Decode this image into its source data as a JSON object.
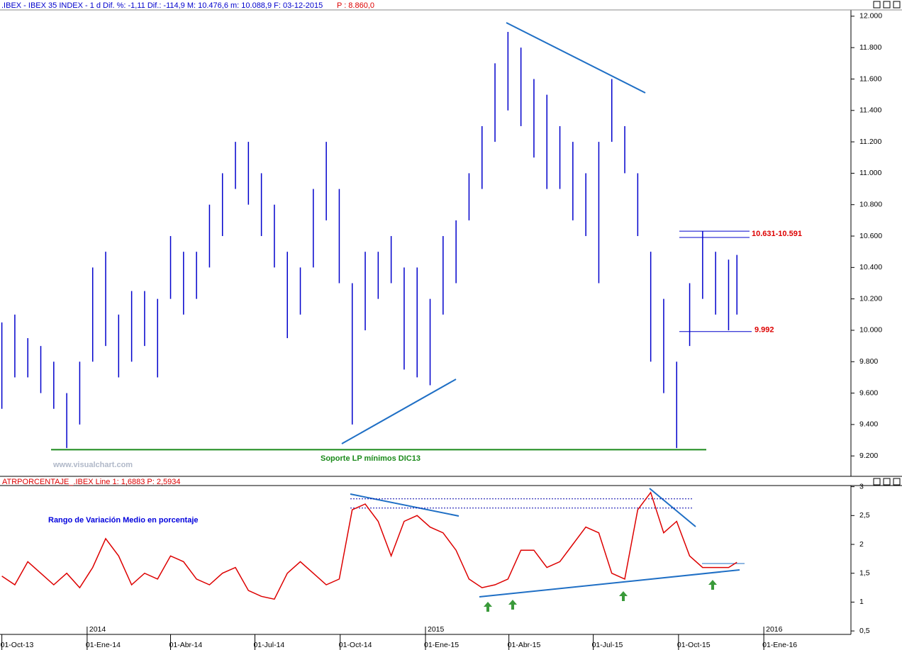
{
  "chart_data": [
    {
      "type": "range-bar",
      "title": ".IBEX - IBEX 35 INDEX - 1 d Dif. %: -1,11  Dif.: -114,9 M: 10.476,6 m: 10.088,9 F: 03-12-2015",
      "title_extra": "P : 8.860,0",
      "watermark": "www.visualchart.com",
      "color": "#0000cc",
      "x": [
        "2013-10-01",
        "2013-10-15",
        "2013-10-29",
        "2013-11-12",
        "2013-11-26",
        "2013-12-10",
        "2013-12-24",
        "2014-01-07",
        "2014-01-21",
        "2014-02-04",
        "2014-02-18",
        "2014-03-04",
        "2014-03-18",
        "2014-04-01",
        "2014-04-15",
        "2014-04-29",
        "2014-05-13",
        "2014-05-27",
        "2014-06-10",
        "2014-06-24",
        "2014-07-08",
        "2014-07-22",
        "2014-08-05",
        "2014-08-19",
        "2014-09-02",
        "2014-09-16",
        "2014-09-30",
        "2014-10-14",
        "2014-10-28",
        "2014-11-11",
        "2014-11-25",
        "2014-12-09",
        "2014-12-23",
        "2015-01-06",
        "2015-01-20",
        "2015-02-03",
        "2015-02-17",
        "2015-03-03",
        "2015-03-17",
        "2015-03-31",
        "2015-04-14",
        "2015-04-28",
        "2015-05-12",
        "2015-05-26",
        "2015-06-09",
        "2015-06-23",
        "2015-07-07",
        "2015-07-21",
        "2015-08-04",
        "2015-08-18",
        "2015-09-01",
        "2015-09-15",
        "2015-09-29",
        "2015-10-13",
        "2015-10-27",
        "2015-11-10",
        "2015-11-24",
        "2015-12-03"
      ],
      "low": [
        9500,
        9700,
        9700,
        9600,
        9500,
        9250,
        9400,
        9800,
        9900,
        9700,
        9800,
        9900,
        9700,
        10200,
        10100,
        10200,
        10400,
        10600,
        10900,
        10800,
        10600,
        10400,
        9950,
        10100,
        10400,
        10700,
        10300,
        9400,
        10000,
        10200,
        10300,
        9750,
        9700,
        9650,
        10100,
        10300,
        10700,
        10900,
        11200,
        11400,
        11300,
        11100,
        10900,
        10900,
        10700,
        10600,
        10300,
        11200,
        11000,
        10600,
        9800,
        9600,
        9250,
        9900,
        10200,
        10100,
        10000,
        10100
      ],
      "high": [
        10050,
        10100,
        9950,
        9900,
        9800,
        9600,
        9800,
        10400,
        10500,
        10100,
        10250,
        10250,
        10200,
        10600,
        10500,
        10500,
        10800,
        11000,
        11200,
        11200,
        11000,
        10800,
        10500,
        10400,
        10900,
        11200,
        10900,
        10300,
        10500,
        10500,
        10600,
        10400,
        10400,
        10200,
        10600,
        10700,
        11000,
        11300,
        11700,
        11900,
        11800,
        11600,
        11500,
        11300,
        11200,
        11000,
        11200,
        11600,
        11300,
        11000,
        10500,
        10200,
        9800,
        10300,
        10630,
        10500,
        10450,
        10480
      ],
      "xlim": [
        "2013-09-29",
        "2016-04-04"
      ],
      "ylim": [
        9070,
        12040
      ],
      "yticks": [
        {
          "value": 9200,
          "label": "9.200"
        },
        {
          "value": 9400,
          "label": "9.400"
        },
        {
          "value": 9600,
          "label": "9.600"
        },
        {
          "value": 9800,
          "label": "9.800"
        },
        {
          "value": 10000,
          "label": "10.000"
        },
        {
          "value": 10200,
          "label": "10.200"
        },
        {
          "value": 10400,
          "label": "10.400"
        },
        {
          "value": 10600,
          "label": "10.600"
        },
        {
          "value": 10800,
          "label": "10.800"
        },
        {
          "value": 11000,
          "label": "11.000"
        },
        {
          "value": 11200,
          "label": "11.200"
        },
        {
          "value": 11400,
          "label": "11.400"
        },
        {
          "value": 11600,
          "label": "11.600"
        },
        {
          "value": 11800,
          "label": "11.800"
        },
        {
          "value": 12000,
          "label": "12.000"
        }
      ],
      "resistance": {
        "label": "10.631-10.591",
        "values": [
          10631,
          10591
        ]
      },
      "support_short": {
        "label": "9.992",
        "value": 9992
      },
      "support_long": {
        "label": "Soporte LP mínimos DIC13",
        "value": 9240
      }
    },
    {
      "type": "line",
      "title": "ATRPORCENTAJE_.IBEX Line 1: 1,6883  P: 2,5934",
      "annotation": "Rango de Variación Medio en porcentaje",
      "color": "#dd0000",
      "values": [
        1.45,
        1.3,
        1.7,
        1.5,
        1.3,
        1.5,
        1.25,
        1.6,
        2.1,
        1.8,
        1.3,
        1.5,
        1.4,
        1.8,
        1.7,
        1.4,
        1.3,
        1.5,
        1.6,
        1.2,
        1.1,
        1.05,
        1.5,
        1.7,
        1.5,
        1.3,
        1.4,
        2.6,
        2.7,
        2.4,
        1.8,
        2.4,
        2.5,
        2.3,
        2.2,
        1.9,
        1.4,
        1.25,
        1.3,
        1.4,
        1.9,
        1.9,
        1.6,
        1.7,
        2.0,
        2.3,
        2.2,
        1.5,
        1.4,
        2.6,
        2.9,
        2.2,
        2.4,
        1.8,
        1.6,
        1.6,
        1.6,
        1.69
      ],
      "ylim": [
        0.44,
        3.02
      ],
      "yticks": [
        {
          "value": 0.5,
          "label": "0,5"
        },
        1,
        {
          "value": 1.5,
          "label": "1,5"
        },
        2,
        {
          "value": 2.5,
          "label": "2,5"
        },
        3
      ],
      "levels": [
        2.79,
        2.63
      ],
      "xticks": [
        {
          "value": "2013-10-01",
          "label": "01-Oct-13"
        },
        {
          "value": "2014-01-01",
          "label": "01-Ene-14"
        },
        {
          "value": "2014-04-01",
          "label": "01-Abr-14"
        },
        {
          "value": "2014-07-01",
          "label": "01-Jul-14"
        },
        {
          "value": "2014-10-01",
          "label": "01-Oct-14"
        },
        {
          "value": "2015-01-01",
          "label": "01-Ene-15"
        },
        {
          "value": "2015-04-01",
          "label": "01-Abr-15"
        },
        {
          "value": "2015-07-01",
          "label": "01-Jul-15"
        },
        {
          "value": "2015-10-01",
          "label": "01-Oct-15"
        },
        {
          "value": "2016-01-01",
          "label": "01-Ene-16"
        }
      ],
      "year_ticks": [
        {
          "value": "2014-01-01",
          "label": "2014"
        },
        {
          "value": "2015-01-01",
          "label": "2015"
        },
        {
          "value": "2016-01-01",
          "label": "2016"
        }
      ]
    }
  ]
}
